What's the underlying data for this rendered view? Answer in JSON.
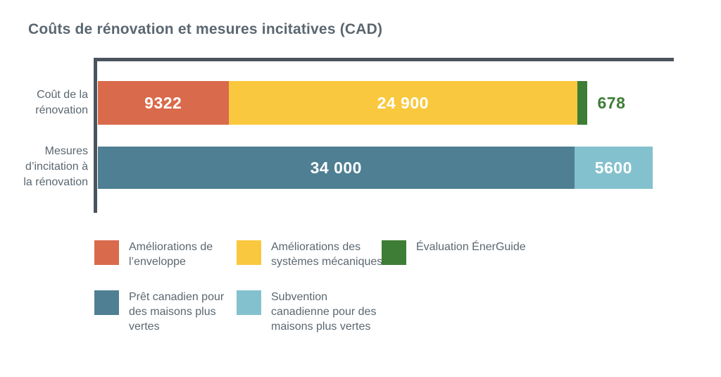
{
  "title": "Coûts de rénovation et mesures incitatives (CAD)",
  "colors": {
    "envelope": "#D96A4B",
    "mechanical": "#F9C83E",
    "energuide": "#3E7D36",
    "loan": "#4E7F92",
    "grant": "#84C1CE",
    "text": "#5B6770",
    "axis": "#4B545E",
    "bar_value_text": "#FFFFFF"
  },
  "chart_data": {
    "type": "bar",
    "orientation": "horizontal",
    "stacked": true,
    "title": "Coûts de rénovation et mesures incitatives (CAD)",
    "unit": "CAD",
    "axis_range": [
      0,
      41000
    ],
    "grid": false,
    "legend_position": "bottom",
    "categories": [
      "Coût de la rénovation",
      "Mesures d’incitation à la rénovation"
    ],
    "bars": [
      {
        "category_label": "Coût de la\nrénovation",
        "total": 34900,
        "segments": [
          {
            "name": "Améliorations de l’enveloppe",
            "color_key": "envelope",
            "value": 9322,
            "label": "9322",
            "label_position": "inside"
          },
          {
            "name": "Améliorations des systèmes mécaniques",
            "color_key": "mechanical",
            "value": 24900,
            "label": "24 900",
            "label_position": "inside"
          },
          {
            "name": "Évaluation ÉnerGuide",
            "color_key": "energuide",
            "value": 678,
            "label": "678",
            "label_position": "outside"
          }
        ]
      },
      {
        "category_label": "Mesures\nd’incitation à\nla rénovation",
        "total": 39600,
        "segments": [
          {
            "name": "Prêt canadien pour des maisons plus vertes",
            "color_key": "loan",
            "value": 34000,
            "label": "34 000",
            "label_position": "inside"
          },
          {
            "name": "Subvention canadienne pour des maisons plus vertes",
            "color_key": "grant",
            "value": 5600,
            "label": "5600",
            "label_position": "inside"
          }
        ]
      }
    ],
    "legend": [
      {
        "label": "Améliorations de l’enveloppe",
        "color_key": "envelope"
      },
      {
        "label": "Améliorations des systèmes mécaniques",
        "color_key": "mechanical"
      },
      {
        "label": "Évaluation ÉnerGuide",
        "color_key": "energuide"
      },
      {
        "label": "Prêt canadien pour des maisons plus vertes",
        "color_key": "loan"
      },
      {
        "label": "Subvention canadienne pour des maisons plus vertes",
        "color_key": "grant"
      }
    ]
  }
}
